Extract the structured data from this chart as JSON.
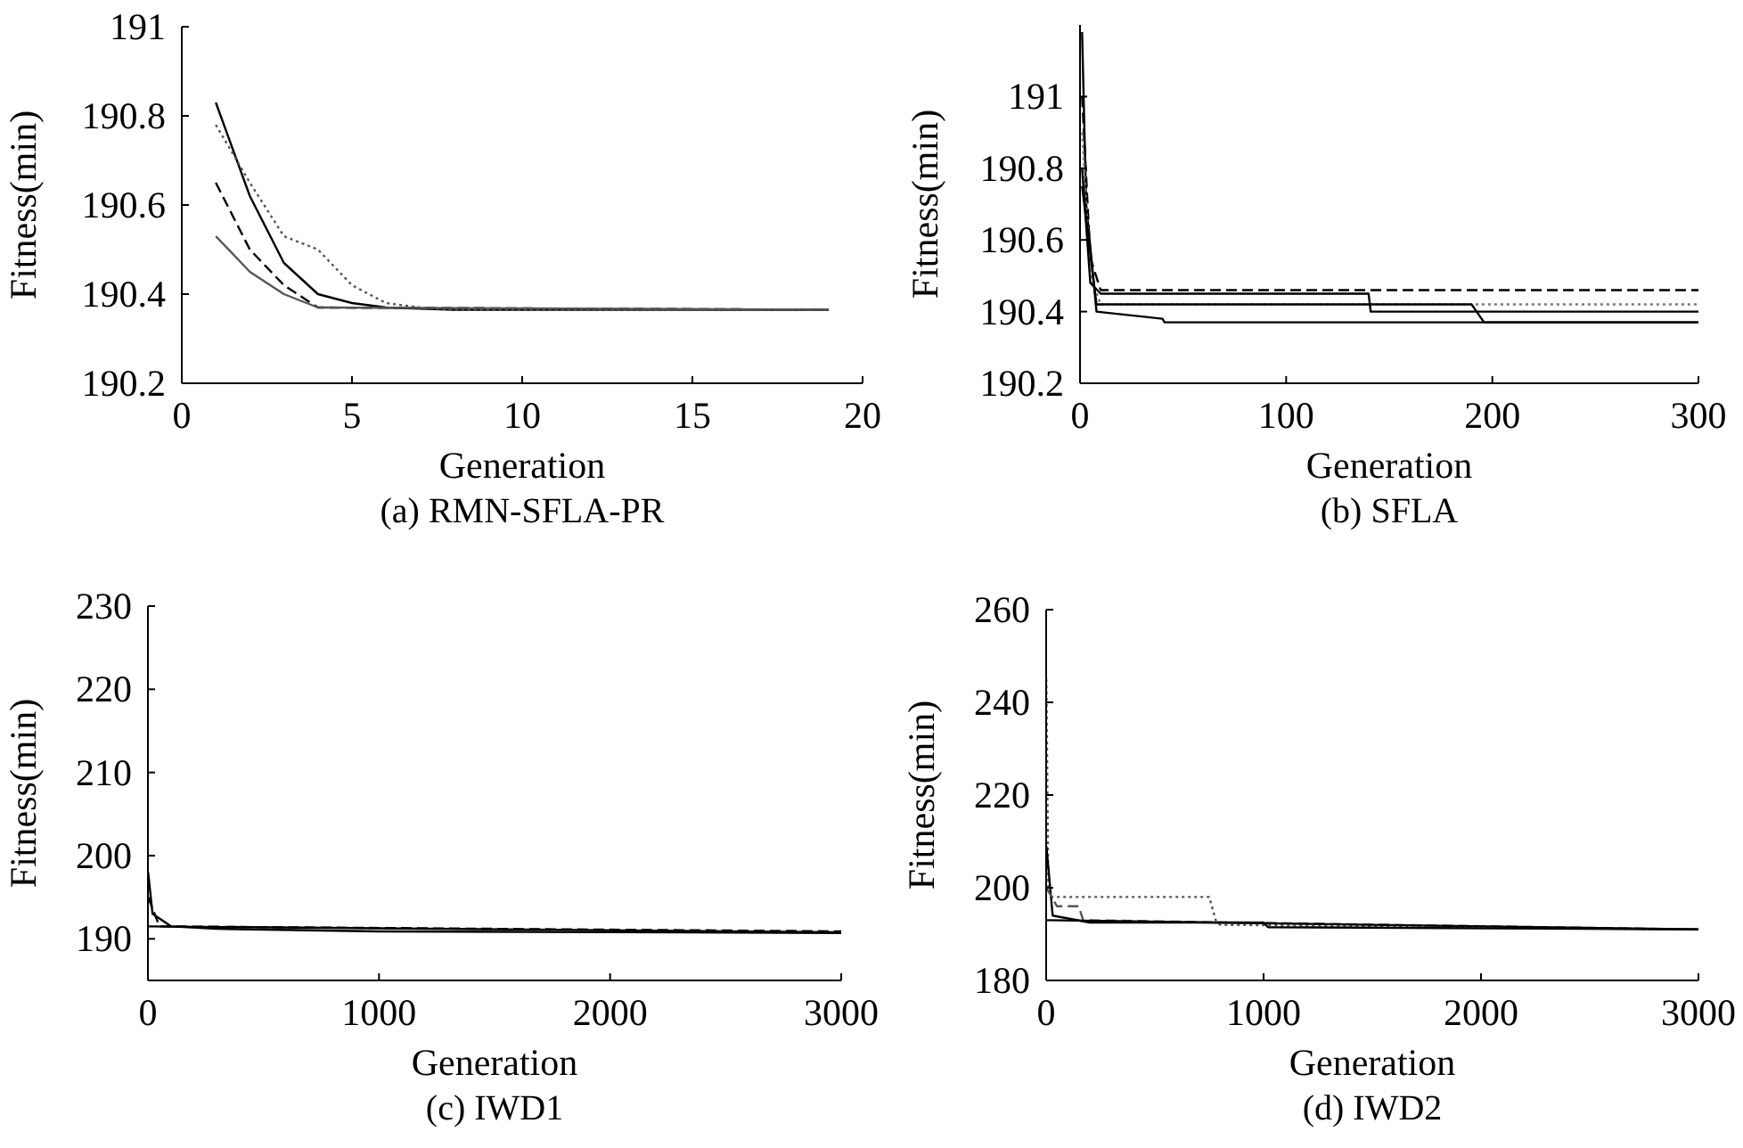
{
  "chart_data": [
    {
      "type": "line",
      "title": "(a) RMN-SFLA-PR",
      "xlabel": "Generation",
      "ylabel": "Fitness(min)",
      "xlim": [
        0,
        20
      ],
      "xticks": [
        0,
        5,
        10,
        15,
        20
      ],
      "ylim": [
        190.2,
        191
      ],
      "yticks": [
        190.2,
        190.4,
        190.6,
        190.8,
        191
      ],
      "grid": false,
      "marker": "none",
      "series": [
        {
          "color": "#000000",
          "line_style": "solid",
          "x": [
            1,
            2,
            3,
            4,
            5,
            6,
            8,
            19
          ],
          "values": [
            190.83,
            190.62,
            190.47,
            190.4,
            190.38,
            190.37,
            190.365,
            190.365
          ]
        },
        {
          "color": "#000000",
          "line_style": "dashed",
          "x": [
            1,
            2,
            3,
            4,
            19
          ],
          "values": [
            190.65,
            190.5,
            190.42,
            190.37,
            190.365
          ]
        },
        {
          "color": "#555555",
          "line_style": "solid",
          "x": [
            1,
            2,
            3,
            4,
            19
          ],
          "values": [
            190.53,
            190.45,
            190.4,
            190.37,
            190.365
          ]
        },
        {
          "color": "#555555",
          "line_style": "dotted",
          "x": [
            1,
            2,
            3,
            4,
            5,
            6,
            7,
            8,
            19
          ],
          "values": [
            190.78,
            190.65,
            190.53,
            190.5,
            190.42,
            190.38,
            190.37,
            190.365,
            190.365
          ]
        }
      ]
    },
    {
      "type": "line",
      "title": "(b) SFLA",
      "xlabel": "Generation",
      "ylabel": "Fitness(min)",
      "xlim": [
        0,
        300
      ],
      "xticks": [
        0,
        100,
        200,
        300
      ],
      "ylim": [
        190.2,
        191.2
      ],
      "yticks": [
        190.2,
        190.4,
        190.6,
        190.8,
        191
      ],
      "grid": false,
      "marker": "none",
      "series": [
        {
          "color": "#000000",
          "line_style": "solid",
          "x": [
            1,
            3,
            8,
            40,
            41,
            300
          ],
          "values": [
            191.18,
            190.7,
            190.4,
            190.38,
            190.37,
            190.37
          ]
        },
        {
          "color": "#000000",
          "line_style": "dashed",
          "x": [
            1,
            5,
            10,
            300
          ],
          "values": [
            191,
            190.55,
            190.46,
            190.46
          ]
        },
        {
          "color": "#777777",
          "line_style": "dotted",
          "x": [
            1,
            5,
            10,
            300
          ],
          "values": [
            190.9,
            190.5,
            190.42,
            190.42
          ]
        },
        {
          "color": "#000000",
          "line_style": "solid",
          "x": [
            1,
            5,
            10,
            140,
            141,
            300
          ],
          "values": [
            190.8,
            190.48,
            190.45,
            190.45,
            190.4,
            190.4
          ]
        },
        {
          "color": "#000000",
          "line_style": "solid",
          "x": [
            1,
            8,
            190,
            196,
            300
          ],
          "values": [
            190.75,
            190.42,
            190.42,
            190.37,
            190.37
          ]
        }
      ]
    },
    {
      "type": "line",
      "title": "(c) IWD1",
      "xlabel": "Generation",
      "ylabel": "Fitness(min)",
      "xlim": [
        0,
        3000
      ],
      "xticks": [
        0,
        1000,
        2000,
        3000
      ],
      "ylim": [
        185,
        230
      ],
      "yticks": [
        190,
        200,
        210,
        220,
        230
      ],
      "grid": false,
      "marker": "none",
      "series": [
        {
          "color": "#000000",
          "line_style": "solid",
          "x": [
            1,
            20,
            100,
            300,
            1000,
            3000
          ],
          "values": [
            198,
            193,
            191.5,
            191.2,
            190.9,
            190.7
          ]
        },
        {
          "color": "#000000",
          "line_style": "dashed",
          "x": [
            1,
            50,
            3000
          ],
          "values": [
            195,
            191.5,
            190.9
          ]
        },
        {
          "color": "#000000",
          "line_style": "solid",
          "x": [
            1,
            3000
          ],
          "values": [
            191.5,
            190.8
          ]
        }
      ]
    },
    {
      "type": "line",
      "title": "(d) IWD2",
      "xlabel": "Generation",
      "ylabel": "Fitness(min)",
      "xlim": [
        0,
        3000
      ],
      "xticks": [
        0,
        1000,
        2000,
        3000
      ],
      "ylim": [
        180,
        260
      ],
      "yticks": [
        180,
        200,
        220,
        240,
        260
      ],
      "grid": false,
      "marker": "none",
      "series": [
        {
          "color": "#555555",
          "line_style": "dotted",
          "x": [
            1,
            10,
            20,
            750,
            780,
            800,
            3000
          ],
          "values": [
            245,
            200,
            198,
            198,
            193,
            192,
            191
          ]
        },
        {
          "color": "#000000",
          "line_style": "solid",
          "x": [
            1,
            30,
            200,
            1000,
            1020,
            3000
          ],
          "values": [
            209,
            194,
            192.5,
            192.5,
            191.5,
            191
          ]
        },
        {
          "color": "#555555",
          "line_style": "dashed",
          "x": [
            1,
            50,
            150,
            170,
            3000
          ],
          "values": [
            200,
            196,
            196,
            193,
            191
          ]
        },
        {
          "color": "#000000",
          "line_style": "solid",
          "x": [
            1,
            3000
          ],
          "values": [
            193,
            191
          ]
        }
      ]
    }
  ]
}
